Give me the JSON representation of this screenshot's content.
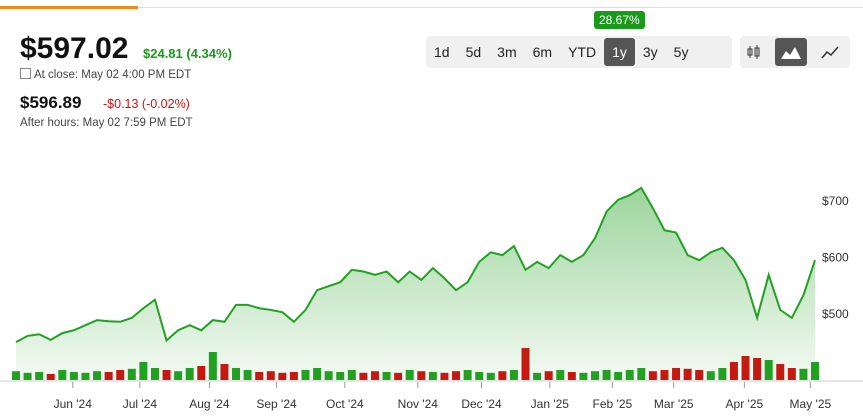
{
  "header": {
    "price": "$597.02",
    "change": "$24.81 (4.34%)",
    "close_label": "At close: May 02 4:00 PM EDT",
    "after_hours_price": "$596.89",
    "after_hours_change": "-$0.13 (-0.02%)",
    "after_hours_label": "After hours: May 02 7:59 PM EDT"
  },
  "range_buttons": [
    "1d",
    "5d",
    "3m",
    "6m",
    "YTD",
    "1y",
    "3y",
    "5y"
  ],
  "active_range_index": 5,
  "range_tooltip": "28.67%",
  "chart_data": {
    "type": "area",
    "color": "#22a022",
    "values": [
      452,
      463,
      466,
      456,
      468,
      473,
      482,
      491,
      489,
      488,
      495,
      512,
      527,
      455,
      473,
      482,
      473,
      491,
      488,
      518,
      518,
      512,
      509,
      505,
      488,
      509,
      544,
      551,
      558,
      580,
      577,
      571,
      577,
      558,
      577,
      562,
      583,
      565,
      544,
      558,
      594,
      611,
      606,
      622,
      580,
      594,
      583,
      606,
      594,
      606,
      636,
      683,
      704,
      712,
      725,
      689,
      650,
      646,
      606,
      597,
      611,
      619,
      597,
      562,
      495,
      571,
      509,
      495,
      535,
      597
    ],
    "volume": [
      22,
      18,
      20,
      15,
      25,
      20,
      18,
      22,
      20,
      25,
      28,
      45,
      30,
      25,
      22,
      30,
      35,
      70,
      40,
      30,
      25,
      20,
      22,
      18,
      20,
      25,
      30,
      22,
      20,
      25,
      18,
      22,
      20,
      18,
      25,
      22,
      20,
      18,
      22,
      25,
      20,
      18,
      22,
      25,
      80,
      18,
      22,
      25,
      20,
      18,
      22,
      25,
      20,
      25,
      30,
      22,
      25,
      30,
      28,
      25,
      22,
      30,
      45,
      60,
      55,
      50,
      40,
      30,
      28,
      45
    ],
    "up_color": "#22a022",
    "down_color": "#d01010",
    "xlim": [
      0,
      69
    ],
    "xticks": [
      {
        "value": 4.9,
        "label": "Jun '24"
      },
      {
        "value": 10.7,
        "label": "Jul '24"
      },
      {
        "value": 16.7,
        "label": "Aug '24"
      },
      {
        "value": 22.5,
        "label": "Sep '24"
      },
      {
        "value": 28.4,
        "label": "Oct '24"
      },
      {
        "value": 34.7,
        "label": "Nov '24"
      },
      {
        "value": 40.2,
        "label": "Dec '24"
      },
      {
        "value": 46.1,
        "label": "Jan '25"
      },
      {
        "value": 51.5,
        "label": "Feb '25"
      },
      {
        "value": 56.8,
        "label": "Mar '25"
      },
      {
        "value": 62.9,
        "label": "Apr '25"
      },
      {
        "value": 68.6,
        "label": "May '25"
      }
    ],
    "ylim": [
      385,
      792
    ],
    "yticks": [
      {
        "value": 500,
        "label": "$500"
      },
      {
        "value": 600,
        "label": "$600"
      },
      {
        "value": 700,
        "label": "$700"
      }
    ]
  }
}
